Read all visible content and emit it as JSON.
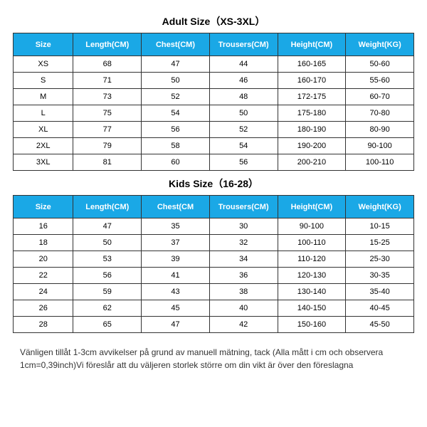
{
  "adult": {
    "title": "Adult Size（XS-3XL）",
    "headers": [
      "Size",
      "Length(CM)",
      "Chest(CM)",
      "Trousers(CM)",
      "Height(CM)",
      "Weight(KG)"
    ],
    "rows": [
      [
        "XS",
        "68",
        "47",
        "44",
        "160-165",
        "50-60"
      ],
      [
        "S",
        "71",
        "50",
        "46",
        "160-170",
        "55-60"
      ],
      [
        "M",
        "73",
        "52",
        "48",
        "172-175",
        "60-70"
      ],
      [
        "L",
        "75",
        "54",
        "50",
        "175-180",
        "70-80"
      ],
      [
        "XL",
        "77",
        "56",
        "52",
        "180-190",
        "80-90"
      ],
      [
        "2XL",
        "79",
        "58",
        "54",
        "190-200",
        "90-100"
      ],
      [
        "3XL",
        "81",
        "60",
        "56",
        "200-210",
        "100-110"
      ]
    ]
  },
  "kids": {
    "title": "Kids Size（16-28）",
    "headers": [
      "Size",
      "Length(CM)",
      "Chest(CM",
      "Trousers(CM)",
      "Height(CM)",
      "Weight(KG)"
    ],
    "rows": [
      [
        "16",
        "47",
        "35",
        "30",
        "90-100",
        "10-15"
      ],
      [
        "18",
        "50",
        "37",
        "32",
        "100-110",
        "15-25"
      ],
      [
        "20",
        "53",
        "39",
        "34",
        "110-120",
        "25-30"
      ],
      [
        "22",
        "56",
        "41",
        "36",
        "120-130",
        "30-35"
      ],
      [
        "24",
        "59",
        "43",
        "38",
        "130-140",
        "35-40"
      ],
      [
        "26",
        "62",
        "45",
        "40",
        "140-150",
        "40-45"
      ],
      [
        "28",
        "65",
        "47",
        "42",
        "150-160",
        "45-50"
      ]
    ]
  },
  "note": "Vänligen tillåt 1-3cm avvikelser på grund av manuell mätning, tack (Alla mått i cm och observera 1cm=0,39inch)Vi föreslår att du väljeren storlek större om din vikt är över den föreslagna",
  "style": {
    "header_bg": "#1aa8e6",
    "header_fg": "#ffffff",
    "border_color": "#333333",
    "cell_bg": "#ffffff",
    "cell_fg": "#000000",
    "title_fontsize": 14,
    "header_fontsize": 11,
    "cell_fontsize": 11,
    "note_fontsize": 12,
    "col_widths_pct": [
      15,
      17,
      17,
      17,
      17,
      17
    ]
  }
}
